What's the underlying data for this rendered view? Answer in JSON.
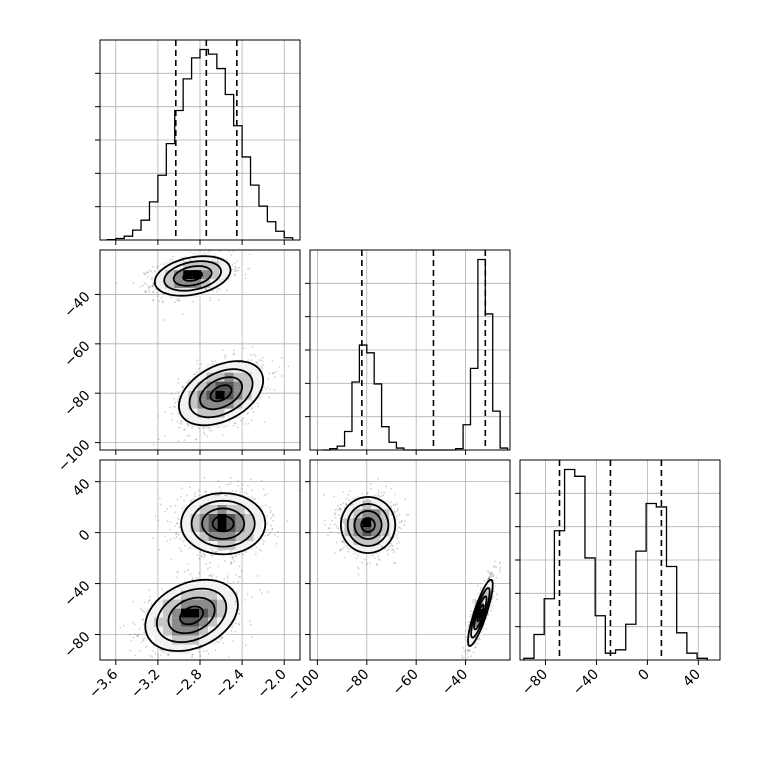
{
  "chart_data": {
    "type": "corner",
    "parameters": [
      {
        "id": "p0",
        "range": [
          -3.75,
          -1.85
        ],
        "ticks": [
          -3.6,
          -3.2,
          -2.8,
          -2.4,
          -2.0
        ],
        "tick_labels": [
          "−3.6",
          "−3.2",
          "−2.8",
          "−2.4",
          "−2.0"
        ],
        "quantiles": [
          -3.03,
          -2.74,
          -2.45
        ]
      },
      {
        "id": "p1",
        "range": [
          -103,
          -22
        ],
        "ticks": [
          -100,
          -80,
          -60,
          -40
        ],
        "tick_labels": [
          "−100",
          "−80",
          "−60",
          "−40"
        ],
        "quantiles": [
          -82,
          -53,
          -32
        ]
      },
      {
        "id": "p2",
        "range": [
          -100,
          57
        ],
        "ticks": [
          -80,
          -40,
          0,
          40
        ],
        "tick_labels": [
          "−80",
          "−40",
          "0",
          "40"
        ],
        "quantiles": [
          -69,
          -29,
          11
        ]
      }
    ],
    "histograms": [
      {
        "param": "p0",
        "bin_edges": [
          -3.68,
          -3.6,
          -3.52,
          -3.44,
          -3.36,
          -3.28,
          -3.2,
          -3.12,
          -3.04,
          -2.96,
          -2.88,
          -2.8,
          -2.72,
          -2.64,
          -2.56,
          -2.48,
          -2.4,
          -2.32,
          -2.24,
          -2.16,
          -2.08,
          -2.0,
          -1.92
        ],
        "counts": [
          1,
          4,
          10,
          26,
          52,
          100,
          170,
          253,
          340,
          423,
          478,
          500,
          488,
          450,
          382,
          300,
          218,
          144,
          89,
          48,
          23,
          6
        ]
      },
      {
        "param": "p1",
        "bin_edges": [
          -98,
          -95,
          -92,
          -89,
          -86,
          -83,
          -80,
          -77,
          -74,
          -71,
          -68,
          -65,
          -62,
          -59,
          -56,
          -53,
          -50,
          -47,
          -44,
          -41,
          -38,
          -35,
          -32,
          -29,
          -26,
          -23
        ],
        "counts": [
          0,
          7,
          20,
          95,
          350,
          540,
          500,
          340,
          120,
          40,
          10,
          0,
          0,
          0,
          0,
          0,
          0,
          0,
          7,
          130,
          420,
          980,
          700,
          200,
          10
        ]
      },
      {
        "param": "p2",
        "bin_edges": [
          -97,
          -89,
          -81,
          -73,
          -65,
          -57,
          -49,
          -41,
          -33,
          -25,
          -17,
          -9,
          -1,
          7,
          15,
          23,
          31,
          39,
          47
        ],
        "counts": [
          5,
          75,
          180,
          380,
          560,
          540,
          300,
          130,
          20,
          30,
          105,
          320,
          460,
          450,
          275,
          80,
          20,
          5
        ]
      }
    ],
    "joint": [
      {
        "x": "p0",
        "y": "p1",
        "modes": [
          {
            "center": [
              -2.87,
              -32.5
            ],
            "sd": [
              0.18,
              4.0
            ],
            "rho": 0.3,
            "weight": 0.5
          },
          {
            "center": [
              -2.6,
              -80
            ],
            "sd": [
              0.2,
              6.5
            ],
            "rho": 0.4,
            "weight": 0.5
          }
        ]
      },
      {
        "x": "p0",
        "y": "p2",
        "modes": [
          {
            "center": [
              -2.58,
              7
            ],
            "sd": [
              0.2,
              12
            ],
            "rho": 0.0,
            "weight": 0.5
          },
          {
            "center": [
              -2.88,
              -65
            ],
            "sd": [
              0.22,
              14
            ],
            "rho": 0.3,
            "weight": 0.5
          }
        ]
      },
      {
        "x": "p1",
        "y": "p2",
        "modes": [
          {
            "center": [
              -79.5,
              6
            ],
            "sd": [
              5.5,
              11
            ],
            "rho": 0.0,
            "weight": 0.5
          },
          {
            "center": [
              -34,
              -63
            ],
            "sd": [
              2.5,
              13
            ],
            "rho": 0.85,
            "weight": 0.5
          }
        ]
      }
    ],
    "contour_levels": [
      "0.5σ",
      "1σ",
      "1.5σ",
      "2σ"
    ],
    "grid": true,
    "title": "",
    "xlabel": "",
    "ylabel": ""
  }
}
